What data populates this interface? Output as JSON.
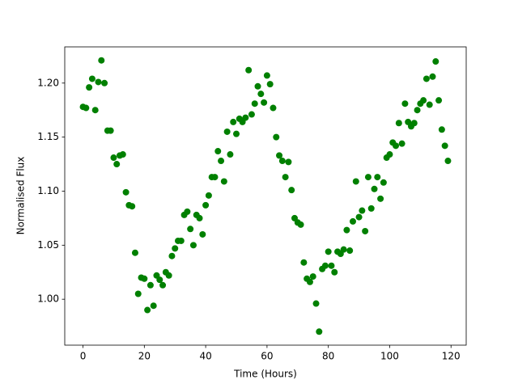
{
  "chart_data": {
    "type": "scatter",
    "xlabel": "Time (Hours)",
    "ylabel": "Normalised Flux",
    "color": "#008000",
    "x": [
      0,
      1,
      2,
      3,
      4,
      5,
      6,
      7,
      8,
      9,
      10,
      11,
      12,
      13,
      14,
      15,
      16,
      17,
      18,
      19,
      20,
      21,
      22,
      23,
      24,
      25,
      26,
      27,
      28,
      29,
      30,
      31,
      32,
      33,
      34,
      35,
      36,
      37,
      38,
      39,
      40,
      41,
      42,
      43,
      44,
      45,
      46,
      47,
      48,
      49,
      50,
      51,
      52,
      53,
      54,
      55,
      56,
      57,
      58,
      59,
      60,
      61,
      62,
      63,
      64,
      65,
      66,
      67,
      68,
      69,
      70,
      71,
      72,
      73,
      74,
      75,
      76,
      77,
      78,
      79,
      80,
      81,
      82,
      83,
      84,
      85,
      86,
      87,
      88,
      89,
      90,
      91,
      92,
      93,
      94,
      95,
      96,
      97,
      98,
      99,
      100,
      101,
      102,
      103,
      104,
      105,
      106,
      107,
      108,
      109,
      110,
      111,
      112,
      113,
      114,
      115,
      116,
      117,
      118,
      119
    ],
    "values": [
      1.178,
      1.177,
      1.196,
      1.204,
      1.175,
      1.201,
      1.221,
      1.2,
      1.156,
      1.156,
      1.131,
      1.125,
      1.133,
      1.134,
      1.099,
      1.087,
      1.086,
      1.043,
      1.005,
      1.02,
      1.019,
      0.99,
      1.013,
      0.994,
      1.022,
      1.018,
      1.013,
      1.025,
      1.022,
      1.04,
      1.047,
      1.054,
      1.054,
      1.078,
      1.081,
      1.065,
      1.05,
      1.078,
      1.075,
      1.06,
      1.087,
      1.096,
      1.113,
      1.113,
      1.137,
      1.128,
      1.109,
      1.155,
      1.134,
      1.164,
      1.153,
      1.167,
      1.164,
      1.168,
      1.212,
      1.171,
      1.181,
      1.197,
      1.19,
      1.182,
      1.207,
      1.199,
      1.177,
      1.15,
      1.133,
      1.128,
      1.113,
      1.127,
      1.101,
      1.075,
      1.071,
      1.069,
      1.034,
      1.019,
      1.016,
      1.021,
      0.996,
      0.97,
      1.028,
      1.031,
      1.044,
      1.031,
      1.025,
      1.044,
      1.042,
      1.046,
      1.064,
      1.045,
      1.072,
      1.109,
      1.076,
      1.082,
      1.063,
      1.113,
      1.084,
      1.102,
      1.113,
      1.093,
      1.108,
      1.131,
      1.134,
      1.145,
      1.142,
      1.163,
      1.144,
      1.181,
      1.164,
      1.16,
      1.163,
      1.175,
      1.181,
      1.184,
      1.204,
      1.18,
      1.206,
      1.22,
      1.184,
      1.157,
      1.142,
      1.128
    ],
    "xlim": [
      -5.95,
      124.95
    ],
    "xticks": [
      0,
      20,
      40,
      60,
      80,
      100,
      120
    ],
    "ylim": [
      0.9575,
      1.2335
    ],
    "yticks": [
      {
        "value": 1,
        "label": "1.00"
      },
      1.05,
      {
        "value": 1.1,
        "label": "1.10"
      },
      1.15,
      {
        "value": 1.2,
        "label": "1.20"
      }
    ]
  }
}
